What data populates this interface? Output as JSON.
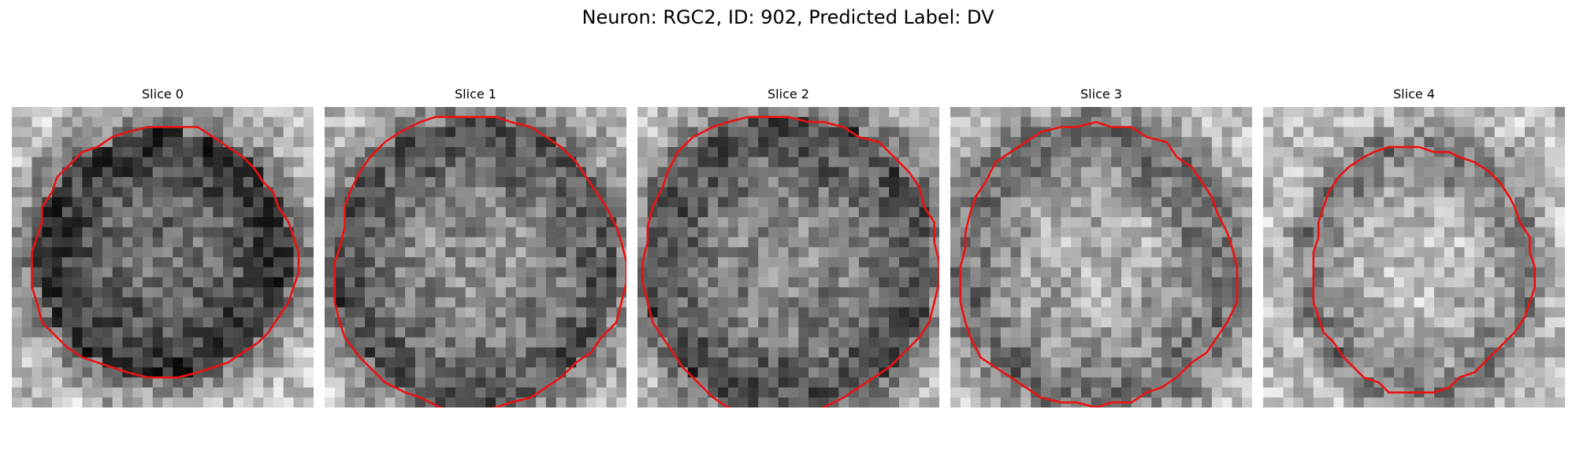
{
  "figure": {
    "title": "Neuron: RGC2, ID: 902, Predicted Label: DV",
    "contour_color": "#ee1111"
  },
  "panels": [
    {
      "title": "Slice 0"
    },
    {
      "title": "Slice 1"
    },
    {
      "title": "Slice 2"
    },
    {
      "title": "Slice 3"
    },
    {
      "title": "Slice 4"
    }
  ]
}
